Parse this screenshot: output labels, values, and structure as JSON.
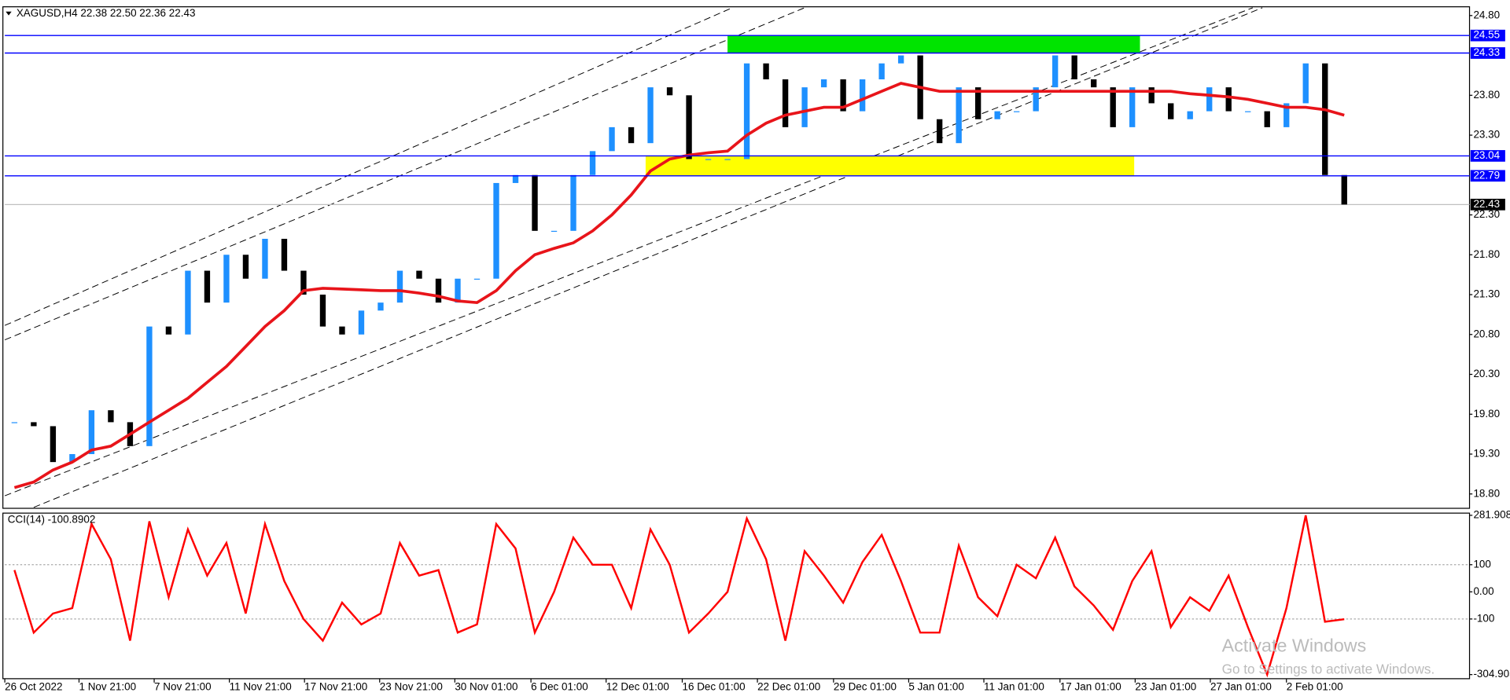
{
  "chart_data": {
    "type": "candlestick",
    "title": "XAGUSD,H4  22.38 22.50 22.36 22.43",
    "up_color": "#1e90ff",
    "down_color": "#000000",
    "ma_color": "#e8141a",
    "close": [
      19.7,
      19.65,
      19.2,
      19.3,
      19.85,
      19.7,
      19.4,
      20.9,
      20.8,
      21.6,
      21.2,
      21.8,
      21.5,
      22.0,
      21.6,
      21.3,
      20.9,
      20.8,
      21.1,
      21.2,
      21.6,
      21.5,
      21.2,
      21.5,
      21.5,
      22.7,
      22.8,
      22.1,
      22.1,
      22.8,
      23.1,
      23.4,
      23.2,
      23.9,
      23.8,
      23.0,
      23.0,
      23.0,
      24.2,
      24.0,
      23.4,
      23.9,
      24.0,
      23.6,
      24.0,
      24.2,
      24.3,
      23.5,
      23.2,
      23.9,
      23.5,
      23.6,
      23.6,
      23.9,
      24.3,
      24.0,
      23.9,
      23.4,
      23.9,
      23.7,
      23.5,
      23.6,
      23.9,
      23.6,
      23.6,
      23.4,
      23.7,
      24.2,
      22.8,
      22.43
    ],
    "ma": [
      18.88,
      18.95,
      19.1,
      19.2,
      19.35,
      19.4,
      19.55,
      19.7,
      19.85,
      20.0,
      20.2,
      20.4,
      20.65,
      20.9,
      21.1,
      21.35,
      21.38,
      21.37,
      21.36,
      21.35,
      21.35,
      21.32,
      21.28,
      21.22,
      21.2,
      21.35,
      21.6,
      21.8,
      21.88,
      21.95,
      22.1,
      22.3,
      22.55,
      22.85,
      23.0,
      23.05,
      23.08,
      23.1,
      23.3,
      23.45,
      23.55,
      23.6,
      23.65,
      23.65,
      23.75,
      23.85,
      23.95,
      23.9,
      23.85,
      23.85,
      23.85,
      23.85,
      23.85,
      23.85,
      23.85,
      23.85,
      23.85,
      23.85,
      23.85,
      23.85,
      23.85,
      23.82,
      23.8,
      23.78,
      23.75,
      23.7,
      23.65,
      23.65,
      23.62,
      23.55
    ],
    "xlim": [
      0,
      76
    ],
    "xticks": [
      {
        "value": 0,
        "label": "26 Oct 2022"
      },
      {
        "value": 3.85,
        "label": "1 Nov 21:00"
      },
      {
        "value": 7.75,
        "label": "7 Nov 21:00"
      },
      {
        "value": 11.65,
        "label": "11 Nov 21:00"
      },
      {
        "value": 15.55,
        "label": "17 Nov 21:00"
      },
      {
        "value": 19.45,
        "label": "23 Nov 21:00"
      },
      {
        "value": 23.35,
        "label": "30 Nov 01:00"
      },
      {
        "value": 27.3,
        "label": "6 Dec 01:00"
      },
      {
        "value": 31.2,
        "label": "12 Dec 01:00"
      },
      {
        "value": 35.15,
        "label": "16 Dec 01:00"
      },
      {
        "value": 39.05,
        "label": "22 Dec 01:00"
      },
      {
        "value": 43,
        "label": "29 Dec 01:00"
      },
      {
        "value": 46.9,
        "label": "5 Jan 01:00"
      },
      {
        "value": 50.8,
        "label": "11 Jan 01:00"
      },
      {
        "value": 54.75,
        "label": "17 Jan 01:00"
      },
      {
        "value": 58.65,
        "label": "23 Jan 01:00"
      },
      {
        "value": 62.55,
        "label": "27 Jan 01:00"
      },
      {
        "value": 66.5,
        "label": "2 Feb 01:00"
      }
    ],
    "ylim": [
      18.62,
      24.91
    ],
    "yticks": [
      {
        "value": 24.8,
        "label": "24.80"
      },
      {
        "value": 23.8,
        "label": "23.80"
      },
      {
        "value": 23.3,
        "label": "23.30"
      },
      {
        "value": 22.3,
        "label": "22.30"
      },
      {
        "value": 21.8,
        "label": "21.80"
      },
      {
        "value": 21.3,
        "label": "21.30"
      },
      {
        "value": 20.8,
        "label": "20.80"
      },
      {
        "value": 20.3,
        "label": "20.30"
      },
      {
        "value": 19.8,
        "label": "19.80"
      },
      {
        "value": 19.3,
        "label": "19.30"
      },
      {
        "value": 18.8,
        "label": "18.80"
      }
    ],
    "levels": [
      24.55,
      24.33,
      23.04,
      22.79
    ],
    "level_color": "#0000ff",
    "last_price": 22.43,
    "cci": {
      "label": "CCI(14) -100.8902",
      "color": "#ff0000",
      "values": [
        80,
        -150,
        -80,
        -60,
        250,
        120,
        -180,
        260,
        -20,
        230,
        60,
        180,
        -80,
        250,
        40,
        -100,
        -180,
        -40,
        -120,
        -80,
        180,
        60,
        80,
        -150,
        -120,
        250,
        160,
        -150,
        0,
        200,
        100,
        100,
        -60,
        230,
        100,
        -150,
        -80,
        0,
        270,
        120,
        -180,
        150,
        60,
        -40,
        110,
        210,
        40,
        -150,
        -150,
        170,
        -20,
        -90,
        100,
        50,
        200,
        20,
        -50,
        -140,
        40,
        150,
        -130,
        -20,
        -70,
        60,
        -130,
        -304.905,
        -60,
        281.908,
        -110,
        -100.8902
      ],
      "ylim": [
        -320,
        290
      ],
      "yticks": [
        281.908,
        100,
        {
          "value": 0,
          "label": "0.00"
        },
        -100,
        -304.905
      ],
      "levels": [
        100,
        -100
      ]
    },
    "watermark": [
      "Activate Windows",
      "Go to Settings to activate Windows."
    ]
  }
}
